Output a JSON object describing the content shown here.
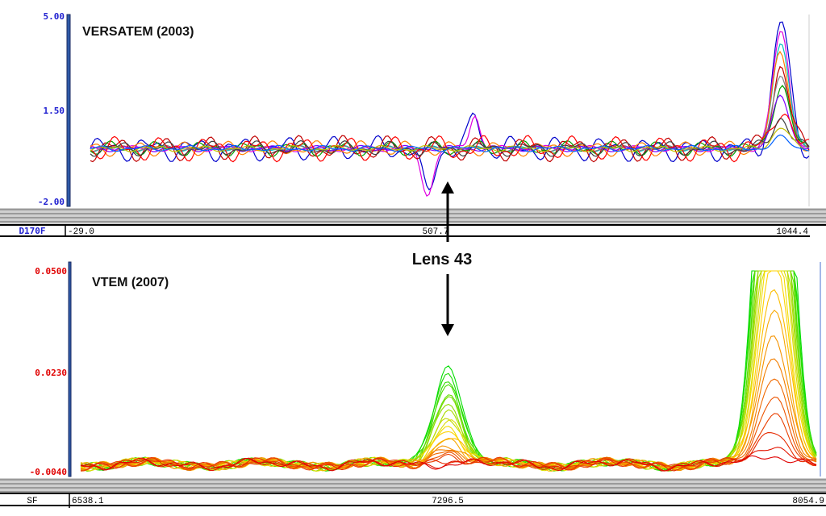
{
  "chart_data": [
    {
      "type": "line",
      "title": "VERSATEM (2003)",
      "channel_label": "D170F",
      "ytick_labels": [
        "5.00",
        "1.50",
        "-2.00"
      ],
      "ylim": [
        -2.0,
        5.0
      ],
      "xtick_labels": [
        "-29.0",
        "507.7",
        "1044.4"
      ],
      "xlim": [
        -29.0,
        1044.4
      ],
      "axis_color": "#2020d0",
      "series_colors": [
        "#0000cc",
        "#e000e0",
        "#00c0c0",
        "#ff8000",
        "#c00000",
        "#808080",
        "#00a000",
        "#8000ff",
        "#ff0000",
        "#404040",
        "#c0c000",
        "#0060ff"
      ],
      "features": [
        {
          "x": 491,
          "y": -1.7,
          "kind": "dip"
        },
        {
          "x": 560,
          "y": 1.3,
          "kind": "bump"
        },
        {
          "x": 1007,
          "y": 4.8,
          "kind": "peak"
        }
      ],
      "baseline": 0
    },
    {
      "type": "line",
      "title": "VTEM (2007)",
      "channel_label": "SF",
      "ytick_labels": [
        "0.0500",
        "0.0230",
        "-0.0040"
      ],
      "ylim": [
        -0.004,
        0.05
      ],
      "xtick_labels": [
        "6538.1",
        "7296.5",
        "8054.9"
      ],
      "xlim": [
        6538.1,
        8054.9
      ],
      "axis_color": "#e00000",
      "series_colors_from": "#00dd00",
      "series_colors_to": "#e00000",
      "features": [
        {
          "x": 7298,
          "y": 0.025,
          "kind": "peak"
        },
        {
          "x": 7957,
          "y": 0.05,
          "kind": "peak-clipped"
        }
      ],
      "baseline": -0.002
    }
  ],
  "annotation": {
    "label": "Lens 43"
  }
}
